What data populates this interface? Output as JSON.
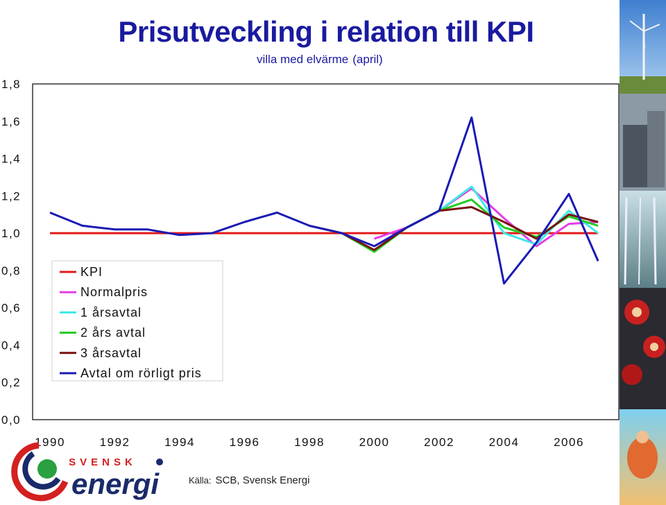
{
  "chart_data": {
    "type": "line",
    "title": "Prisutveckling i relation till KPI",
    "subtitle": "villa med elvärme",
    "subtitle_extra": "(april)",
    "xlabel": "",
    "ylabel": "",
    "ylim": [
      0,
      1.8
    ],
    "xlim": [
      1990,
      2007
    ],
    "y_ticks": [
      "0,0",
      "0,2",
      "0,4",
      "0,6",
      "0,8",
      "1,0",
      "1,2",
      "1,4",
      "1,6",
      "1,8"
    ],
    "x_ticks": [
      "1990",
      "1992",
      "1994",
      "1996",
      "1998",
      "2000",
      "2002",
      "2004",
      "2006"
    ],
    "grid": false,
    "legend_position": "bottom-left",
    "series": [
      {
        "name": "KPI",
        "color": "#e31a1a",
        "x": [
          1990,
          2006.9
        ],
        "values": [
          1.0,
          1.0
        ]
      },
      {
        "name": "Normalpris",
        "color": "#e63ce6",
        "x": [
          2000,
          2001,
          2002,
          2003,
          2004,
          2005,
          2006,
          2006.9
        ],
        "values": [
          0.97,
          1.03,
          1.12,
          1.24,
          1.08,
          0.93,
          1.05,
          1.06
        ]
      },
      {
        "name": "1 årsavtal",
        "color": "#40e8e8",
        "x": [
          2000,
          2001,
          2002,
          2003,
          2004,
          2005,
          2006,
          2006.9
        ],
        "values": [
          0.91,
          1.03,
          1.12,
          1.25,
          1.0,
          0.94,
          1.12,
          1.0
        ]
      },
      {
        "name": "2 års avtal",
        "color": "#22cc22",
        "x": [
          1998,
          1999,
          2000,
          2001,
          2002,
          2003,
          2004,
          2005,
          2006,
          2006.9
        ],
        "values": [
          1.04,
          1.0,
          0.9,
          1.03,
          1.12,
          1.18,
          1.03,
          0.98,
          1.09,
          1.04
        ]
      },
      {
        "name": "3 årsavtal",
        "color": "#7a1010",
        "x": [
          1998,
          1999,
          2000,
          2001,
          2002,
          2003,
          2004,
          2005,
          2006,
          2006.9
        ],
        "values": [
          1.04,
          1.0,
          0.91,
          1.03,
          1.12,
          1.14,
          1.06,
          0.97,
          1.1,
          1.06
        ]
      },
      {
        "name": "Avtal om rörligt pris",
        "color": "#1a1ab4",
        "x": [
          1990,
          1991,
          1992,
          1993,
          1994,
          1995,
          1996,
          1997,
          1998,
          1999,
          2000,
          2001,
          2002,
          2003,
          2004,
          2005,
          2006,
          2006.9
        ],
        "values": [
          1.11,
          1.04,
          1.02,
          1.02,
          0.99,
          1.0,
          1.06,
          1.11,
          1.04,
          1.0,
          0.93,
          1.03,
          1.12,
          1.62,
          0.73,
          0.95,
          1.21,
          0.85
        ]
      }
    ]
  },
  "source": {
    "label": "Källa:",
    "text": "SCB, Svensk Energi"
  },
  "logo": {
    "top_text": "SVENSK",
    "main_text": "energi"
  },
  "colors": {
    "title": "#1a1aa0",
    "axis": "#000000"
  }
}
